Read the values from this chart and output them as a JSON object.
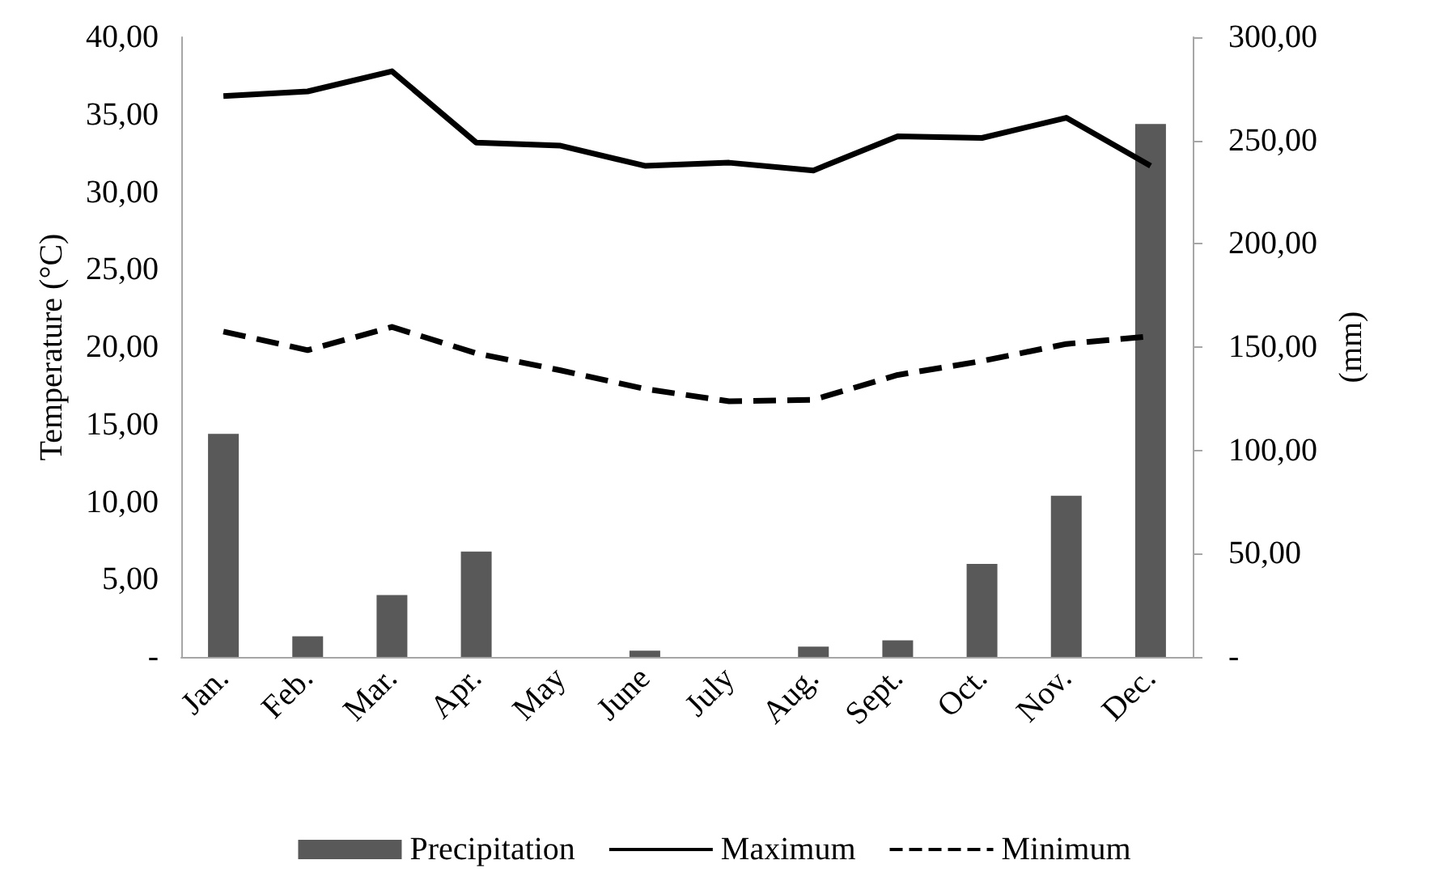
{
  "chart_data": {
    "type": "bar",
    "ylabel": "Temperature (°C)",
    "y2label": "(mm)",
    "categories": [
      "Jan.",
      "Feb.",
      "Mar.",
      "Apr.",
      "May",
      "June",
      "July",
      "Aug.",
      "Sept.",
      "Oct.",
      "Nov.",
      "Dec."
    ],
    "series": [
      {
        "name": "Precipitation",
        "axis": "y2",
        "color": "#595959",
        "values": [
          108,
          10,
          30,
          51,
          0,
          3,
          0,
          5,
          8,
          45,
          78,
          258
        ]
      },
      {
        "name": "Maximum",
        "type": "line",
        "color": "#000000",
        "line_style": "solid",
        "values": [
          36.2,
          36.5,
          37.8,
          33.2,
          33.0,
          31.7,
          31.9,
          31.4,
          33.6,
          33.5,
          34.8,
          31.7
        ]
      },
      {
        "name": "Minimum",
        "type": "line",
        "color": "#000000",
        "line_style": "dashed",
        "values": [
          21.0,
          19.8,
          21.3,
          19.6,
          18.5,
          17.3,
          16.5,
          16.6,
          18.2,
          19.1,
          20.2,
          20.7
        ]
      }
    ],
    "ylim": [
      0,
      40
    ],
    "yticks": [
      {
        "value": 0,
        "label": "-"
      },
      {
        "value": 5,
        "label": "5,00"
      },
      {
        "value": 10,
        "label": "10,00"
      },
      {
        "value": 15,
        "label": "15,00"
      },
      {
        "value": 20,
        "label": "20,00"
      },
      {
        "value": 25,
        "label": "25,00"
      },
      {
        "value": 30,
        "label": "30,00"
      },
      {
        "value": 35,
        "label": "35,00"
      },
      {
        "value": 40,
        "label": "40,00"
      }
    ],
    "y2lim": [
      0,
      300
    ],
    "y2ticks": [
      {
        "value": 0,
        "label": "-"
      },
      {
        "value": 50,
        "label": "50,00"
      },
      {
        "value": 100,
        "label": "100,00"
      },
      {
        "value": 150,
        "label": "150,00"
      },
      {
        "value": 200,
        "label": "200,00"
      },
      {
        "value": 250,
        "label": "250,00"
      },
      {
        "value": 300,
        "label": "300,00"
      }
    ],
    "grid": false,
    "legend": "bottom",
    "marker": "none"
  }
}
